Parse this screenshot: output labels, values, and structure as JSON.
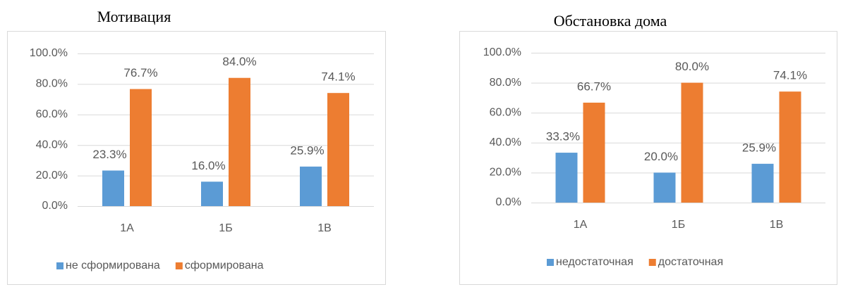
{
  "chart_data": [
    {
      "type": "bar",
      "title": "Мотивация",
      "categories": [
        "1А",
        "1Б",
        "1В"
      ],
      "series": [
        {
          "name": "не сформирована",
          "color": "#5b9bd5",
          "values": [
            23.3,
            16.0,
            25.9
          ],
          "value_labels": [
            "23.3%",
            "16.0%",
            "25.9%"
          ]
        },
        {
          "name": "сформирована",
          "color": "#ed7d31",
          "values": [
            76.7,
            84.0,
            74.1
          ],
          "value_labels": [
            "76.7%",
            "84.0%",
            "74.1%"
          ]
        }
      ],
      "ylim": [
        0,
        100
      ],
      "yticks": [
        {
          "value": 0,
          "label": "0.0%"
        },
        {
          "value": 20,
          "label": "20.0%"
        },
        {
          "value": 40,
          "label": "40.0%"
        },
        {
          "value": 60,
          "label": "60.0%"
        },
        {
          "value": 80,
          "label": "80.0%"
        },
        {
          "value": 100,
          "label": "100.0%"
        }
      ],
      "grid": true,
      "legend": "bottom"
    },
    {
      "type": "bar",
      "title": "Обстановка дома",
      "categories": [
        "1А",
        "1Б",
        "1В"
      ],
      "series": [
        {
          "name": "недостаточная",
          "color": "#5b9bd5",
          "values": [
            33.3,
            20.0,
            25.9
          ],
          "value_labels": [
            "33.3%",
            "20.0%",
            "25.9%"
          ]
        },
        {
          "name": "достаточная",
          "color": "#ed7d31",
          "values": [
            66.7,
            80.0,
            74.1
          ],
          "value_labels": [
            "66.7%",
            "80.0%",
            "74.1%"
          ]
        }
      ],
      "ylim": [
        0,
        100
      ],
      "yticks": [
        {
          "value": 0,
          "label": "0.0%"
        },
        {
          "value": 20,
          "label": "20.0%"
        },
        {
          "value": 40,
          "label": "40.0%"
        },
        {
          "value": 60,
          "label": "60.0%"
        },
        {
          "value": 80,
          "label": "80.0%"
        },
        {
          "value": 100,
          "label": "100.0%"
        }
      ],
      "grid": true,
      "legend": "bottom"
    }
  ]
}
